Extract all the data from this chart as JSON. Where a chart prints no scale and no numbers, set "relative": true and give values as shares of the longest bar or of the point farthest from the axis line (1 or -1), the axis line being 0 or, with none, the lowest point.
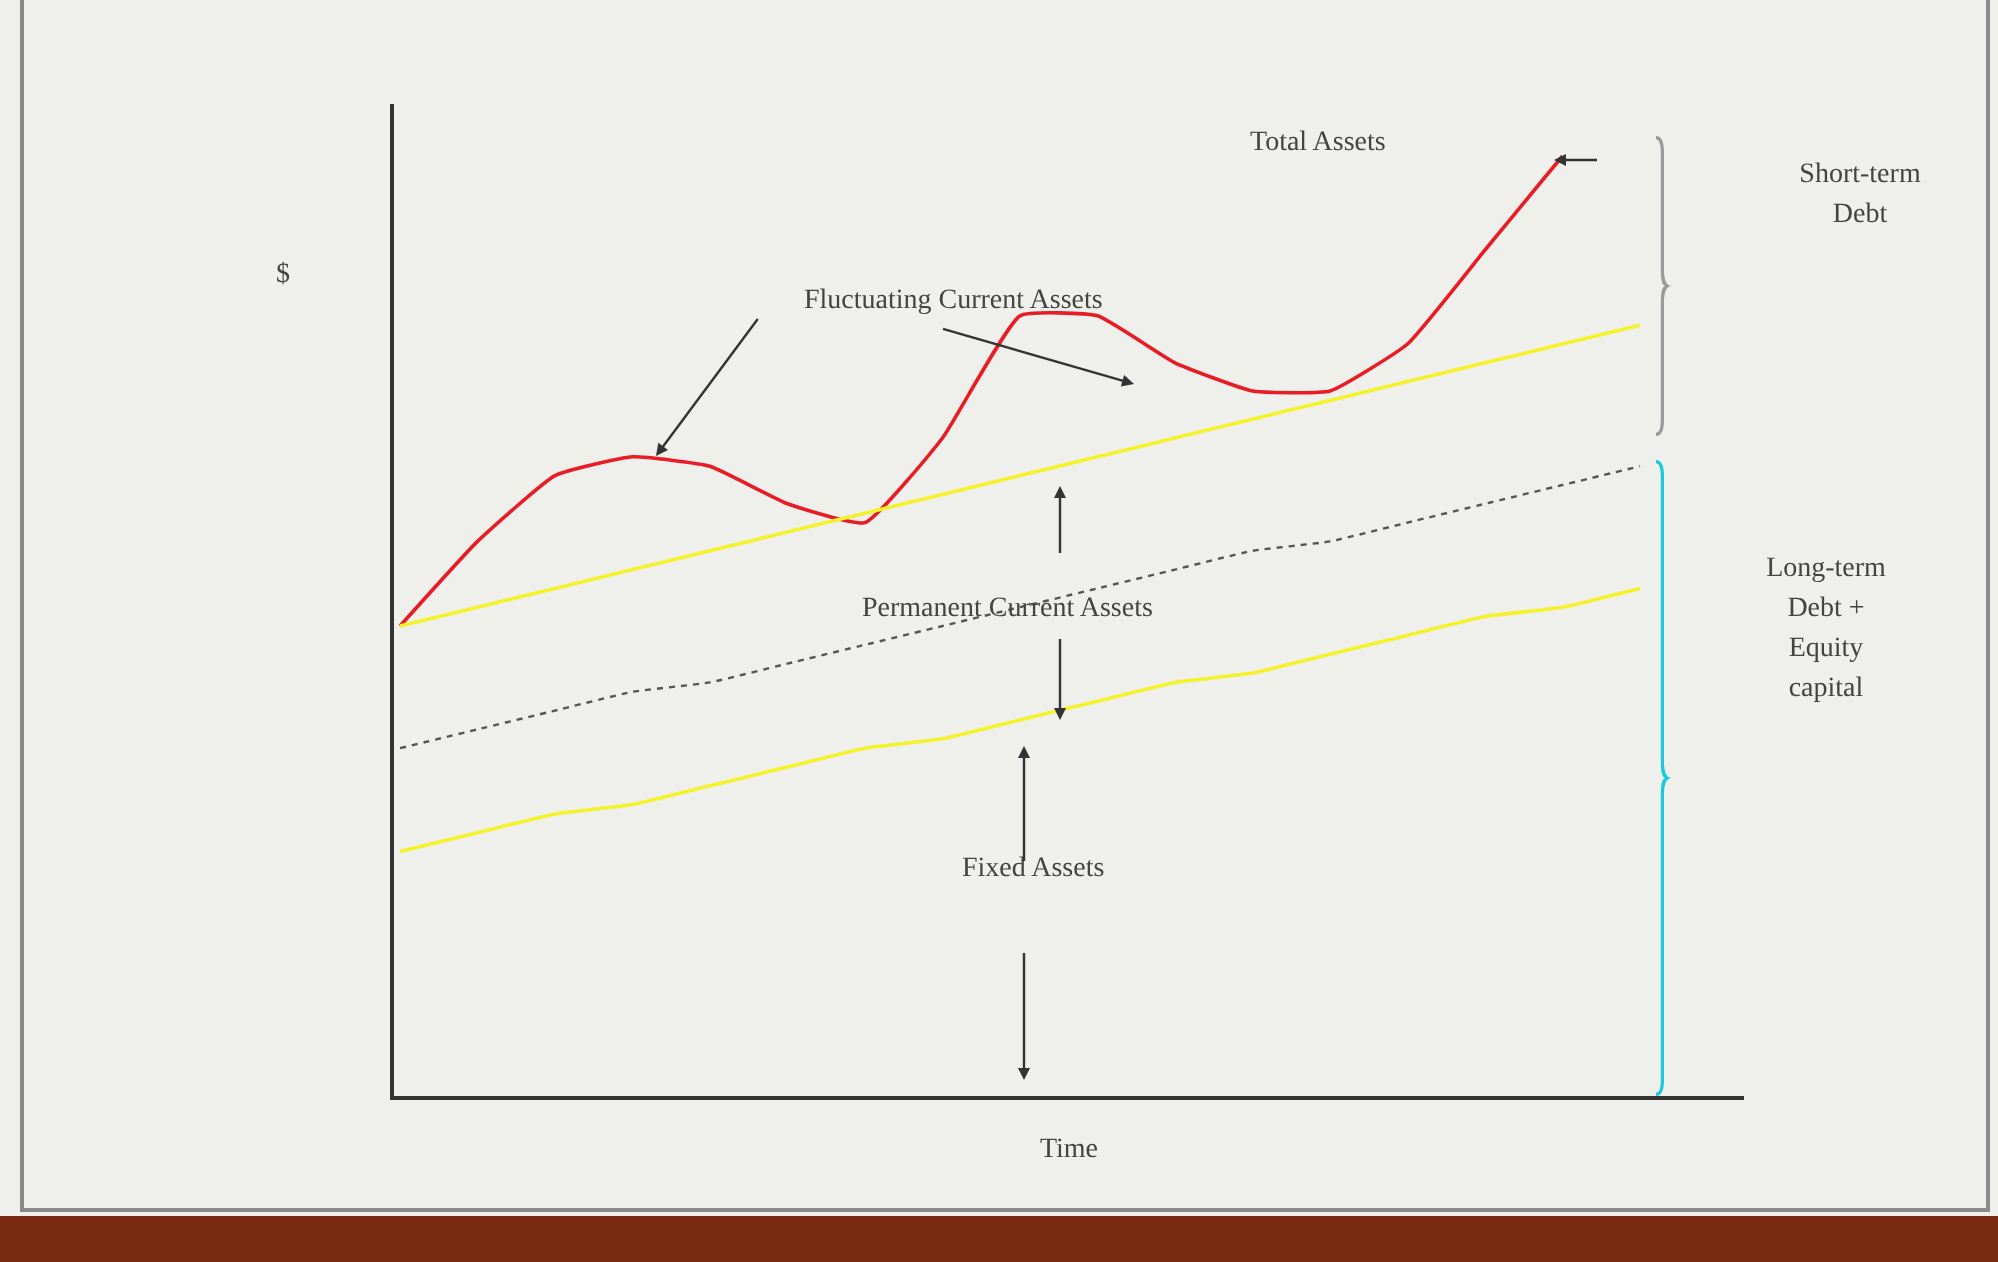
{
  "chart_data": {
    "type": "line",
    "relative": true,
    "xlabel": "Time",
    "ylabel": "$",
    "categories": [
      null,
      null,
      null,
      null,
      null,
      null,
      null,
      null,
      null,
      null,
      null,
      null,
      null,
      null,
      null,
      null,
      null
    ],
    "series": [
      {
        "color": "#e81c24",
        "values": [
          0.5,
          0.59,
          0.66,
          0.68,
          0.67,
          0.63,
          0.61,
          0.7,
          0.83,
          0.83,
          0.78,
          0.75,
          0.75,
          0.8,
          0.9,
          1.0,
          null
        ]
      },
      {
        "color": "#f4f22a",
        "values": [
          0.5,
          0.52,
          0.54,
          0.56,
          0.58,
          0.6,
          0.62,
          0.64,
          0.66,
          0.68,
          0.7,
          0.72,
          0.74,
          0.76,
          0.78,
          0.8,
          0.82
        ]
      },
      {
        "color": "#555555",
        "line_style": "dotted",
        "values": [
          0.37,
          0.39,
          0.41,
          0.43,
          0.44,
          0.46,
          0.48,
          0.5,
          0.52,
          0.54,
          0.56,
          0.58,
          0.59,
          0.61,
          0.63,
          0.65,
          0.67
        ]
      },
      {
        "color": "#f4f22a",
        "values": [
          0.26,
          0.28,
          0.3,
          0.31,
          0.33,
          0.35,
          0.37,
          0.38,
          0.4,
          0.42,
          0.44,
          0.45,
          0.47,
          0.49,
          0.51,
          0.52,
          0.54
        ]
      }
    ],
    "annotations": [
      "Total Assets",
      "Fluctuating Current Assets",
      "Permanent Current Assets",
      "Fixed Assets",
      "Short-term Debt",
      "Long-term Debt + Equity capital"
    ]
  }
}
